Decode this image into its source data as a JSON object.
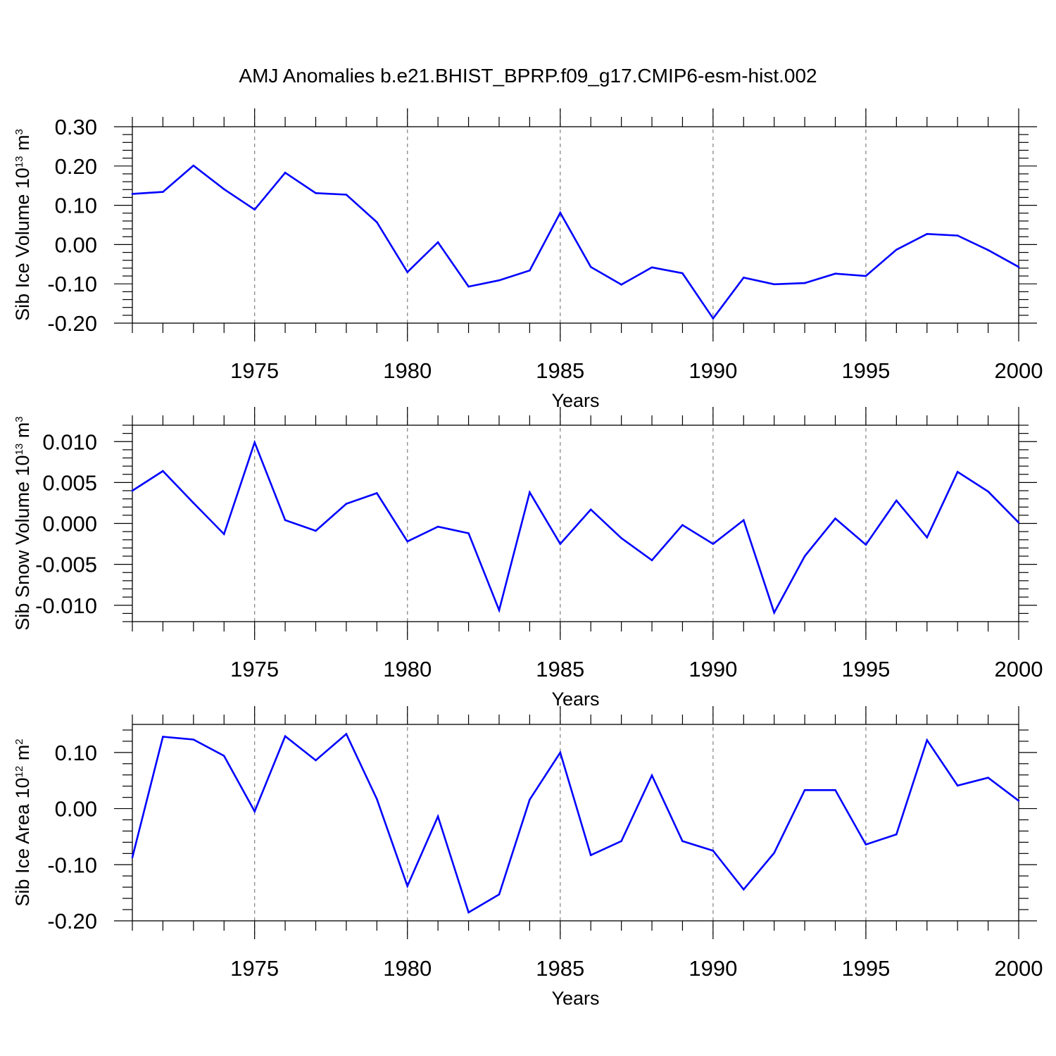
{
  "title": "AMJ Anomalies b.e21.BHIST_BPRP.f09_g17.CMIP6-esm-hist.002",
  "line_color": "#0000ff",
  "chart_data": [
    {
      "type": "line",
      "ylabel": {
        "text": "Sib Ice Volume 10",
        "exp": "13",
        "unit": " m",
        "unit_exp": "3"
      },
      "xlabel": "Years",
      "xlim": [
        1971,
        2000
      ],
      "ylim": [
        -0.2,
        0.3
      ],
      "yticks": [
        0.3,
        0.2,
        0.1,
        0.0,
        -0.1,
        -0.2
      ],
      "ytick_labels": [
        "0.30",
        "0.20",
        "0.10",
        "0.00",
        "-0.10",
        "-0.20"
      ],
      "yminor_step": 0.02,
      "xticks": [
        1975,
        1980,
        1985,
        1990,
        1995,
        2000
      ],
      "xtick_labels": [
        "1975",
        "1980",
        "1985",
        "1990",
        "1995",
        "2000"
      ],
      "grid": "vertical dashed at major x ticks",
      "x": [
        1971,
        1972,
        1973,
        1974,
        1975,
        1976,
        1977,
        1978,
        1979,
        1980,
        1981,
        1982,
        1983,
        1984,
        1985,
        1986,
        1987,
        1988,
        1989,
        1990,
        1991,
        1992,
        1993,
        1994,
        1995,
        1996,
        1997,
        1998,
        1999,
        2000
      ],
      "values": [
        0.129,
        0.134,
        0.201,
        0.141,
        0.089,
        0.183,
        0.131,
        0.127,
        0.057,
        -0.07,
        0.006,
        -0.107,
        -0.091,
        -0.066,
        0.081,
        -0.057,
        -0.102,
        -0.058,
        -0.073,
        -0.188,
        -0.084,
        -0.101,
        -0.098,
        -0.074,
        -0.08,
        -0.013,
        0.027,
        0.023,
        -0.014,
        -0.057
      ]
    },
    {
      "type": "line",
      "ylabel": {
        "text": "Sib Snow Volume 10",
        "exp": "13",
        "unit": " m",
        "unit_exp": "3"
      },
      "xlabel": "Years",
      "xlim": [
        1971,
        2000
      ],
      "ylim": [
        -0.012,
        0.012
      ],
      "yticks": [
        0.01,
        0.005,
        0.0,
        -0.005,
        -0.01
      ],
      "ytick_labels": [
        "0.010",
        "0.005",
        "0.000",
        "-0.005",
        "-0.010"
      ],
      "yminor_step": 0.001,
      "xticks": [
        1975,
        1980,
        1985,
        1990,
        1995,
        2000
      ],
      "xtick_labels": [
        "1975",
        "1980",
        "1985",
        "1990",
        "1995",
        "2000"
      ],
      "grid": "vertical dashed at major x ticks",
      "x": [
        1971,
        1972,
        1973,
        1974,
        1975,
        1976,
        1977,
        1978,
        1979,
        1980,
        1981,
        1982,
        1983,
        1984,
        1985,
        1986,
        1987,
        1988,
        1989,
        1990,
        1991,
        1992,
        1993,
        1994,
        1995,
        1996,
        1997,
        1998,
        1999,
        2000
      ],
      "values": [
        0.004,
        0.0064,
        0.0025,
        -0.0013,
        0.0099,
        0.0004,
        -0.0009,
        0.0024,
        0.0037,
        -0.0022,
        -0.0004,
        -0.0012,
        -0.0106,
        0.0038,
        -0.0025,
        0.0017,
        -0.0018,
        -0.0045,
        -0.0002,
        -0.0025,
        0.0004,
        -0.0109,
        -0.004,
        0.0006,
        -0.0026,
        0.0028,
        -0.0017,
        0.0063,
        0.0039,
        0.0001
      ]
    },
    {
      "type": "line",
      "ylabel": {
        "text": "Sib Ice Area 10",
        "exp": "12",
        "unit": " m",
        "unit_exp": "2"
      },
      "xlabel": "Years",
      "xlim": [
        1971,
        2000
      ],
      "ylim": [
        -0.2,
        0.15
      ],
      "yticks": [
        0.1,
        0.0,
        -0.1,
        -0.2
      ],
      "ytick_labels": [
        "0.10",
        "0.00",
        "-0.10",
        "-0.20"
      ],
      "yminor_step": 0.02,
      "xticks": [
        1975,
        1980,
        1985,
        1990,
        1995,
        2000
      ],
      "xtick_labels": [
        "1975",
        "1980",
        "1985",
        "1990",
        "1995",
        "2000"
      ],
      "grid": "vertical dashed at major x ticks",
      "x": [
        1971,
        1972,
        1973,
        1974,
        1975,
        1976,
        1977,
        1978,
        1979,
        1980,
        1981,
        1982,
        1983,
        1984,
        1985,
        1986,
        1987,
        1988,
        1989,
        1990,
        1991,
        1992,
        1993,
        1994,
        1995,
        1996,
        1997,
        1998,
        1999,
        2000
      ],
      "values": [
        -0.087,
        0.128,
        0.123,
        0.094,
        -0.005,
        0.129,
        0.086,
        0.133,
        0.017,
        -0.138,
        -0.014,
        -0.185,
        -0.153,
        0.016,
        0.1,
        -0.083,
        -0.058,
        0.059,
        -0.058,
        -0.075,
        -0.144,
        -0.079,
        0.033,
        0.033,
        -0.064,
        -0.046,
        0.122,
        0.041,
        0.055,
        0.014
      ]
    }
  ]
}
